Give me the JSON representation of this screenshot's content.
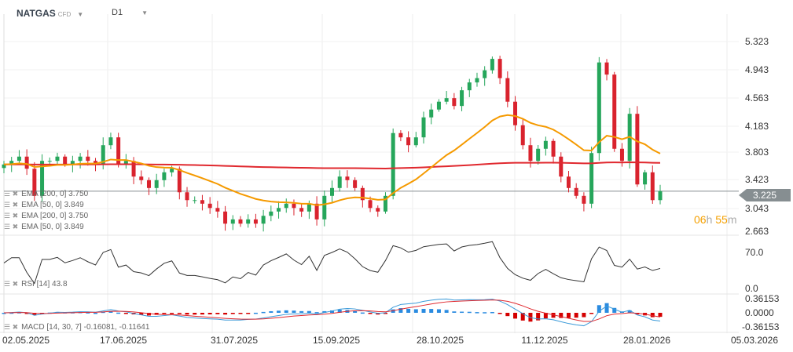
{
  "header": {
    "symbol": "NATGAS",
    "type": "CFD",
    "timeframe": "D1"
  },
  "indicators": [
    {
      "label": "EMA",
      "params": "[200,  0]",
      "value": "3.750"
    },
    {
      "label": "EMA",
      "params": "[50,  0]",
      "value": "3.849"
    },
    {
      "label": "EMA",
      "params": "[200,  0]",
      "value": "3.750"
    },
    {
      "label": "EMA",
      "params": "[50,  0]",
      "value": "3.849"
    }
  ],
  "rsi": {
    "label": "RSI",
    "params": "[14]",
    "value": "43.8",
    "ticks": [
      "70.0",
      "0.0"
    ]
  },
  "macd": {
    "label": "MACD",
    "params": "[14, 30, 7]",
    "value": "-0.16081,  -0.11641",
    "ticks": [
      "0.36153",
      "0.0000",
      "-0.36153"
    ]
  },
  "price_ticks": [
    "5.323",
    "4.943",
    "4.563",
    "4.183",
    "3.803",
    "3.423",
    "3.043",
    "2.663"
  ],
  "current_price": "3.225",
  "countdown": {
    "hours": "06",
    "h": "h",
    "minutes": "55",
    "m": "m"
  },
  "date_ticks": [
    "02.05.2025",
    "17.06.2025",
    "31.07.2025",
    "15.09.2025",
    "28.10.2025",
    "11.12.2025",
    "28.01.2026",
    "05.03.2026"
  ],
  "colors": {
    "up": "#26a65b",
    "down": "#d9232e",
    "ema50": "#f59a00",
    "ema200": "#e0282e",
    "macd_pos": "#2a8be0",
    "macd_neg": "#d40000"
  },
  "chart_data": {
    "type": "candlestick",
    "closes": [
      3.6,
      3.65,
      3.71,
      3.54,
      3.16,
      3.65,
      3.65,
      3.71,
      3.6,
      3.65,
      3.71,
      3.65,
      3.6,
      3.87,
      3.98,
      3.6,
      3.65,
      3.43,
      3.38,
      3.27,
      3.38,
      3.49,
      3.54,
      3.21,
      3.1,
      3.1,
      3.05,
      2.99,
      2.94,
      2.77,
      2.83,
      2.77,
      2.83,
      2.77,
      2.88,
      2.94,
      2.99,
      3.05,
      2.99,
      2.94,
      3.05,
      2.83,
      3.16,
      3.27,
      3.43,
      3.38,
      3.27,
      3.1,
      2.99,
      2.94,
      3.16,
      4.04,
      3.98,
      3.87,
      3.98,
      4.26,
      4.37,
      4.48,
      4.53,
      4.42,
      4.64,
      4.75,
      4.81,
      4.92,
      5.08,
      4.81,
      4.48,
      4.15,
      3.87,
      3.65,
      3.82,
      3.93,
      3.71,
      3.43,
      3.27,
      3.16,
      3.05,
      3.76,
      5.03,
      4.86,
      3.82,
      3.65,
      4.31,
      3.32,
      3.49,
      3.1,
      3.225
    ]
  }
}
